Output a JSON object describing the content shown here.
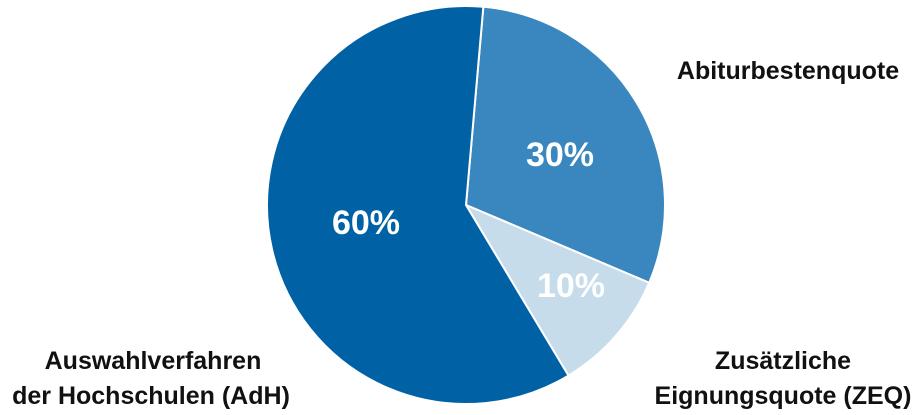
{
  "chart_data": {
    "type": "pie",
    "slices": [
      {
        "label_lines": [
          "Abiturbestenquote"
        ],
        "value": 30,
        "data_label": "30%",
        "color": "#3a86be"
      },
      {
        "label_lines": [
          "Zusätzliche",
          "Eignungsquote (ZEQ)"
        ],
        "value": 10,
        "data_label": "10%",
        "color": "#c6dcea"
      },
      {
        "label_lines": [
          "Auswahlverfahren",
          "der Hochschulen (AdH)"
        ],
        "value": 60,
        "data_label": "60%",
        "color": "#0062a4"
      }
    ],
    "data_label_color": "#ffffff",
    "separator_color": "#ffffff"
  }
}
